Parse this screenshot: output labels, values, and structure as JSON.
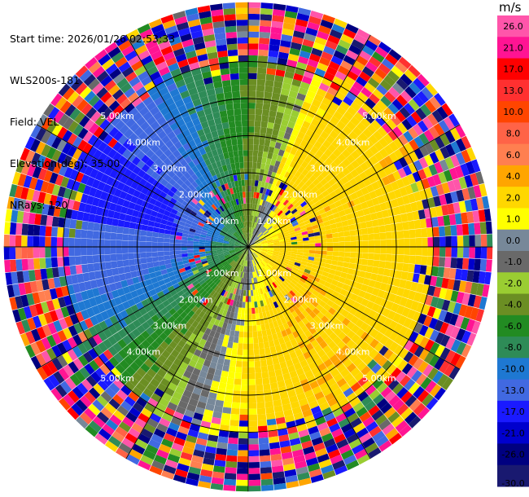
{
  "header": {
    "start_time": "Start time: 2026/01/26 02:53:33",
    "instrument": "WLS200s-181",
    "field": "Field: VEL",
    "elevation": "Elevation(deg): 35.00",
    "nrays": "NRays: 120"
  },
  "chart_data": {
    "type": "heatmap",
    "projection": "polar-ppi",
    "field": "VEL",
    "units": "m/s",
    "start_time": "2026/01/26 02:53:33",
    "elevation_deg": 35.0,
    "n_rays": 120,
    "range_rings_km": [
      1,
      2,
      3,
      4,
      5
    ],
    "range_ring_labels": [
      "1.00km",
      "2.00km",
      "3.00km",
      "4.00km",
      "5.00km"
    ],
    "max_range_km": 6.6,
    "azimuth_lines_deg": [
      0,
      30,
      60,
      90,
      120,
      150,
      180,
      210,
      240,
      270,
      300,
      330
    ],
    "colorbar": {
      "label": "m/s",
      "ticks": [
        "26.0",
        "21.0",
        "17.0",
        "13.0",
        "10.0",
        "8.0",
        "6.0",
        "4.0",
        "2.0",
        "1.0",
        "0.0",
        "-1.0",
        "-2.0",
        "-4.0",
        "-6.0",
        "-8.0",
        "-10.0",
        "-13.0",
        "-17.0",
        "-21.0",
        "-26.0",
        "-30.0"
      ],
      "bins": [
        {
          "min": 26,
          "max": 30,
          "color": "#ff55aa"
        },
        {
          "min": 21,
          "max": 26,
          "color": "#ff1493"
        },
        {
          "min": 17,
          "max": 21,
          "color": "#ff0000"
        },
        {
          "min": 13,
          "max": 17,
          "color": "#ff3030"
        },
        {
          "min": 10,
          "max": 13,
          "color": "#ff4500"
        },
        {
          "min": 8,
          "max": 10,
          "color": "#ff6347"
        },
        {
          "min": 6,
          "max": 8,
          "color": "#ff7f50"
        },
        {
          "min": 4,
          "max": 6,
          "color": "#ffa500"
        },
        {
          "min": 2,
          "max": 4,
          "color": "#ffd700"
        },
        {
          "min": 1,
          "max": 2,
          "color": "#ffff00"
        },
        {
          "min": 0,
          "max": 1,
          "color": "#778899"
        },
        {
          "min": -1,
          "max": 0,
          "color": "#696969"
        },
        {
          "min": -2,
          "max": -1,
          "color": "#9acd32"
        },
        {
          "min": -4,
          "max": -2,
          "color": "#6b8e23"
        },
        {
          "min": -6,
          "max": -4,
          "color": "#228b22"
        },
        {
          "min": -8,
          "max": -6,
          "color": "#2e8b57"
        },
        {
          "min": -10,
          "max": -8,
          "color": "#1e78d2"
        },
        {
          "min": -13,
          "max": -10,
          "color": "#4169e1"
        },
        {
          "min": -17,
          "max": -13,
          "color": "#1a1aff"
        },
        {
          "min": -21,
          "max": -17,
          "color": "#0000cd"
        },
        {
          "min": -26,
          "max": -21,
          "color": "#000080"
        },
        {
          "min": -30,
          "max": -26,
          "color": "#191970"
        }
      ]
    },
    "velocity_model_regions": [
      {
        "sector": "north-northwest",
        "value_range_ms": [
          -6,
          -2
        ]
      },
      {
        "sector": "northeast",
        "value_range_ms": [
          -2,
          0
        ]
      },
      {
        "sector": "east",
        "value_range_ms": [
          6,
          10
        ]
      },
      {
        "sector": "south",
        "value_range_ms": [
          2,
          4
        ]
      },
      {
        "sector": "west",
        "value_range_ms": [
          -8,
          -4
        ]
      },
      {
        "sector": "northwest-outer",
        "value_range_ms": [
          -13,
          -10
        ]
      }
    ]
  }
}
